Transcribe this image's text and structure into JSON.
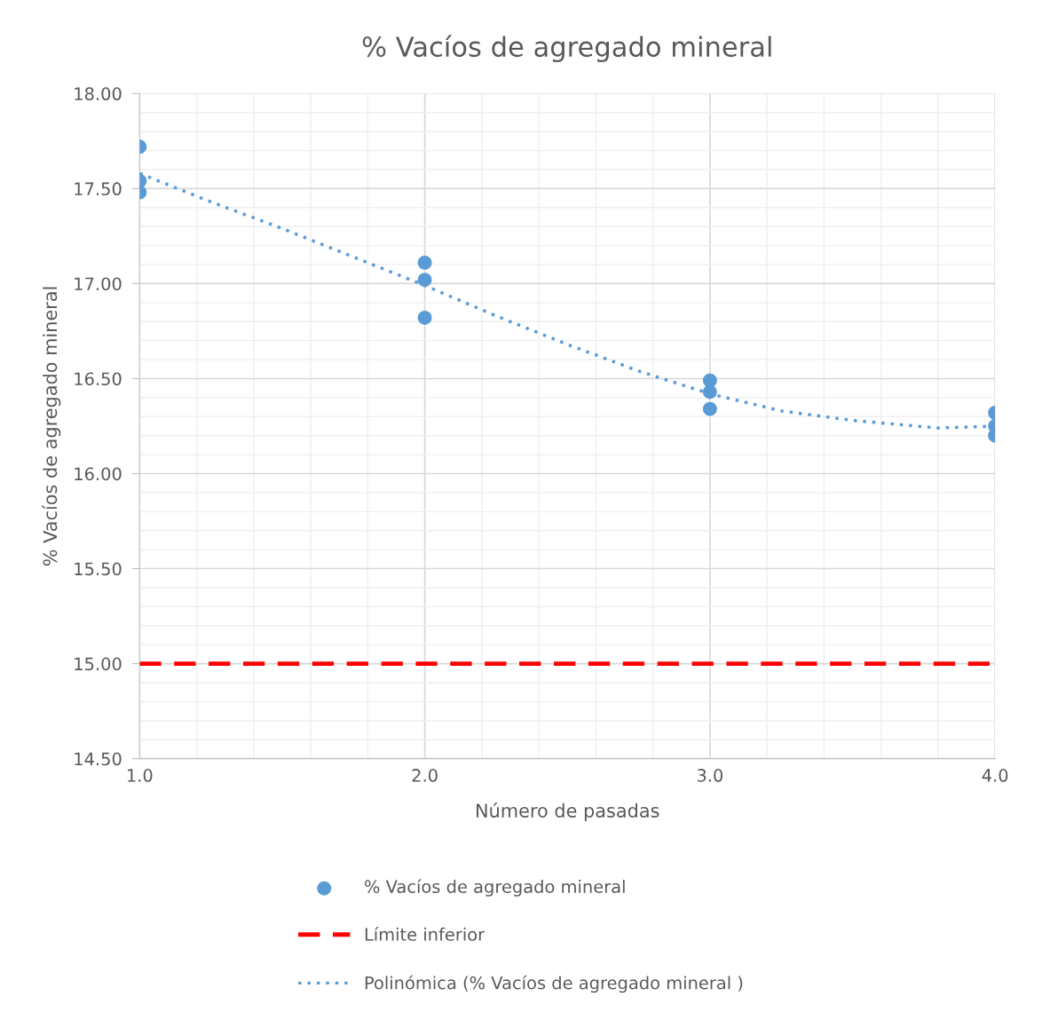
{
  "chart_data": {
    "type": "scatter",
    "title": "% Vacíos de agregado mineral",
    "xlabel": "Número de pasadas",
    "ylabel": "% Vacíos de agregado mineral",
    "series": [
      {
        "name": "% Vacíos de agregado mineral",
        "color": "#5b9bd5",
        "marker": "circle",
        "x": [
          1,
          1,
          1,
          2,
          2,
          2,
          3,
          3,
          3,
          4,
          4,
          4
        ],
        "values": [
          17.72,
          17.54,
          17.48,
          17.11,
          17.02,
          16.82,
          16.49,
          16.43,
          16.34,
          16.32,
          16.25,
          16.2
        ]
      },
      {
        "name": "Polinómica (% Vacíos de agregado mineral )",
        "type": "line",
        "color": "#5b9bd5",
        "line_style": "dotted",
        "marker": "none",
        "x": [
          1,
          1.25,
          1.5,
          1.75,
          2,
          2.25,
          2.5,
          2.75,
          3,
          3.25,
          3.5,
          3.8,
          4
        ],
        "values": [
          17.58,
          17.43,
          17.29,
          17.14,
          16.99,
          16.83,
          16.68,
          16.54,
          16.42,
          16.33,
          16.28,
          16.24,
          16.25
        ]
      }
    ],
    "ref_lines": [
      {
        "axis": "y",
        "value": 15.0,
        "label": "Límite inferior",
        "color": "#ff0000",
        "line_style": "dashed"
      }
    ],
    "xlim": [
      1,
      4
    ],
    "xticks": [
      {
        "value": 1,
        "label": "1.0"
      },
      {
        "value": 2,
        "label": "2.0"
      },
      {
        "value": 3,
        "label": "3.0"
      },
      {
        "value": 4,
        "label": "4.0"
      }
    ],
    "ylim": [
      14.5,
      18
    ],
    "yticks": [
      {
        "value": 14.5,
        "label": "14.50"
      },
      {
        "value": 15,
        "label": "15.00"
      },
      {
        "value": 15.5,
        "label": "15.50"
      },
      {
        "value": 16,
        "label": "16.00"
      },
      {
        "value": 16.5,
        "label": "16.50"
      },
      {
        "value": 17,
        "label": "17.00"
      },
      {
        "value": 17.5,
        "label": "17.50"
      },
      {
        "value": 18,
        "label": "18.00"
      }
    ],
    "grid": true,
    "legend": "bottom"
  }
}
